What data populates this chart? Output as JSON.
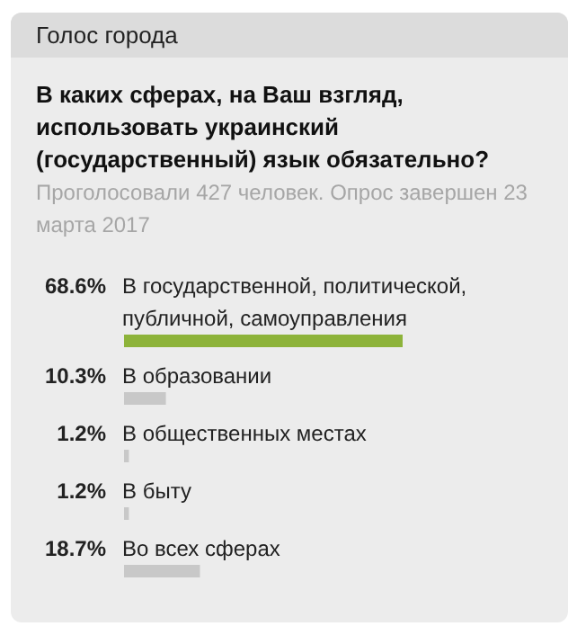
{
  "chart_data": {
    "type": "bar",
    "orientation": "horizontal",
    "title": "Голос города",
    "subtitle": "В каких сферах, на Ваш взгляд, использовать украинский (государственный) язык обязательно?",
    "annotations": [
      "Проголосовали 427 человек. Опрос завершен 23 марта 2017"
    ],
    "categories": [
      "В государственной, политической, публичной, самоуправления",
      "В образовании",
      "В общественных местах",
      "В быту",
      "Во всех сферах"
    ],
    "values": [
      68.6,
      10.3,
      1.2,
      1.2,
      18.7
    ],
    "value_labels": [
      "68.6%",
      "10.3%",
      "1.2%",
      "1.2%",
      "18.7%"
    ],
    "colors": [
      "#8db33a",
      "#c8c8c8",
      "#c8c8c8",
      "#c8c8c8",
      "#c8c8c8"
    ]
  }
}
